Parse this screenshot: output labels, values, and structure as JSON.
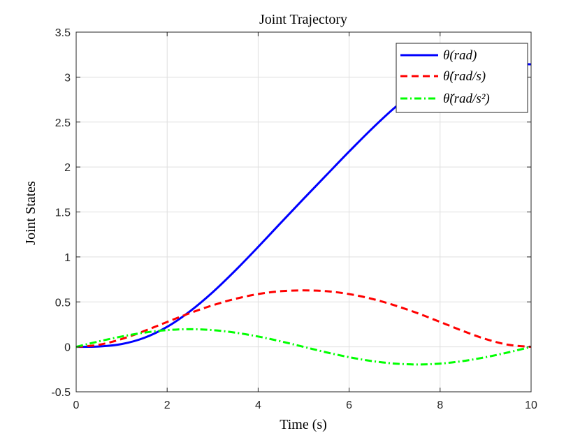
{
  "chart_data": {
    "type": "line",
    "title": "Joint Trajectory",
    "xlabel": "Time (s)",
    "ylabel": "Joint States",
    "xlim": [
      0,
      10
    ],
    "ylim": [
      -0.5,
      3.5
    ],
    "xticks": [
      "0",
      "2",
      "4",
      "6",
      "8",
      "10"
    ],
    "yticks": [
      "-0.5",
      "0",
      "0.5",
      "1",
      "1.5",
      "2",
      "2.5",
      "3",
      "3.5"
    ],
    "grid": true,
    "legend_position": "top-right",
    "x": [
      0,
      0.5,
      1,
      1.5,
      2,
      2.5,
      3,
      3.5,
      4,
      4.5,
      5,
      5.5,
      6,
      6.5,
      7,
      7.5,
      8,
      8.5,
      9,
      9.5,
      10
    ],
    "series": [
      {
        "name": "θ(rad)",
        "color": "#0000ff",
        "style": "solid",
        "values": [
          0,
          0.004,
          0.031,
          0.101,
          0.223,
          0.395,
          0.607,
          0.85,
          1.111,
          1.38,
          1.647,
          1.91,
          2.172,
          2.425,
          2.659,
          2.862,
          3.022,
          3.128,
          3.165,
          3.15,
          3.142
        ]
      },
      {
        "name": "θ̇(rad/s)",
        "color": "#ff0000",
        "style": "dashed",
        "values": [
          0,
          0.023,
          0.087,
          0.177,
          0.277,
          0.375,
          0.462,
          0.534,
          0.587,
          0.619,
          0.628,
          0.619,
          0.587,
          0.534,
          0.462,
          0.375,
          0.277,
          0.177,
          0.087,
          0.023,
          0
        ]
      },
      {
        "name": "θ̈(rad/s²)",
        "color": "#00ff00",
        "style": "dashdot",
        "values": [
          0,
          0.061,
          0.115,
          0.158,
          0.186,
          0.196,
          0.186,
          0.158,
          0.115,
          0.061,
          0,
          -0.061,
          -0.115,
          -0.158,
          -0.186,
          -0.196,
          -0.186,
          -0.158,
          -0.115,
          -0.061,
          0
        ]
      }
    ]
  }
}
